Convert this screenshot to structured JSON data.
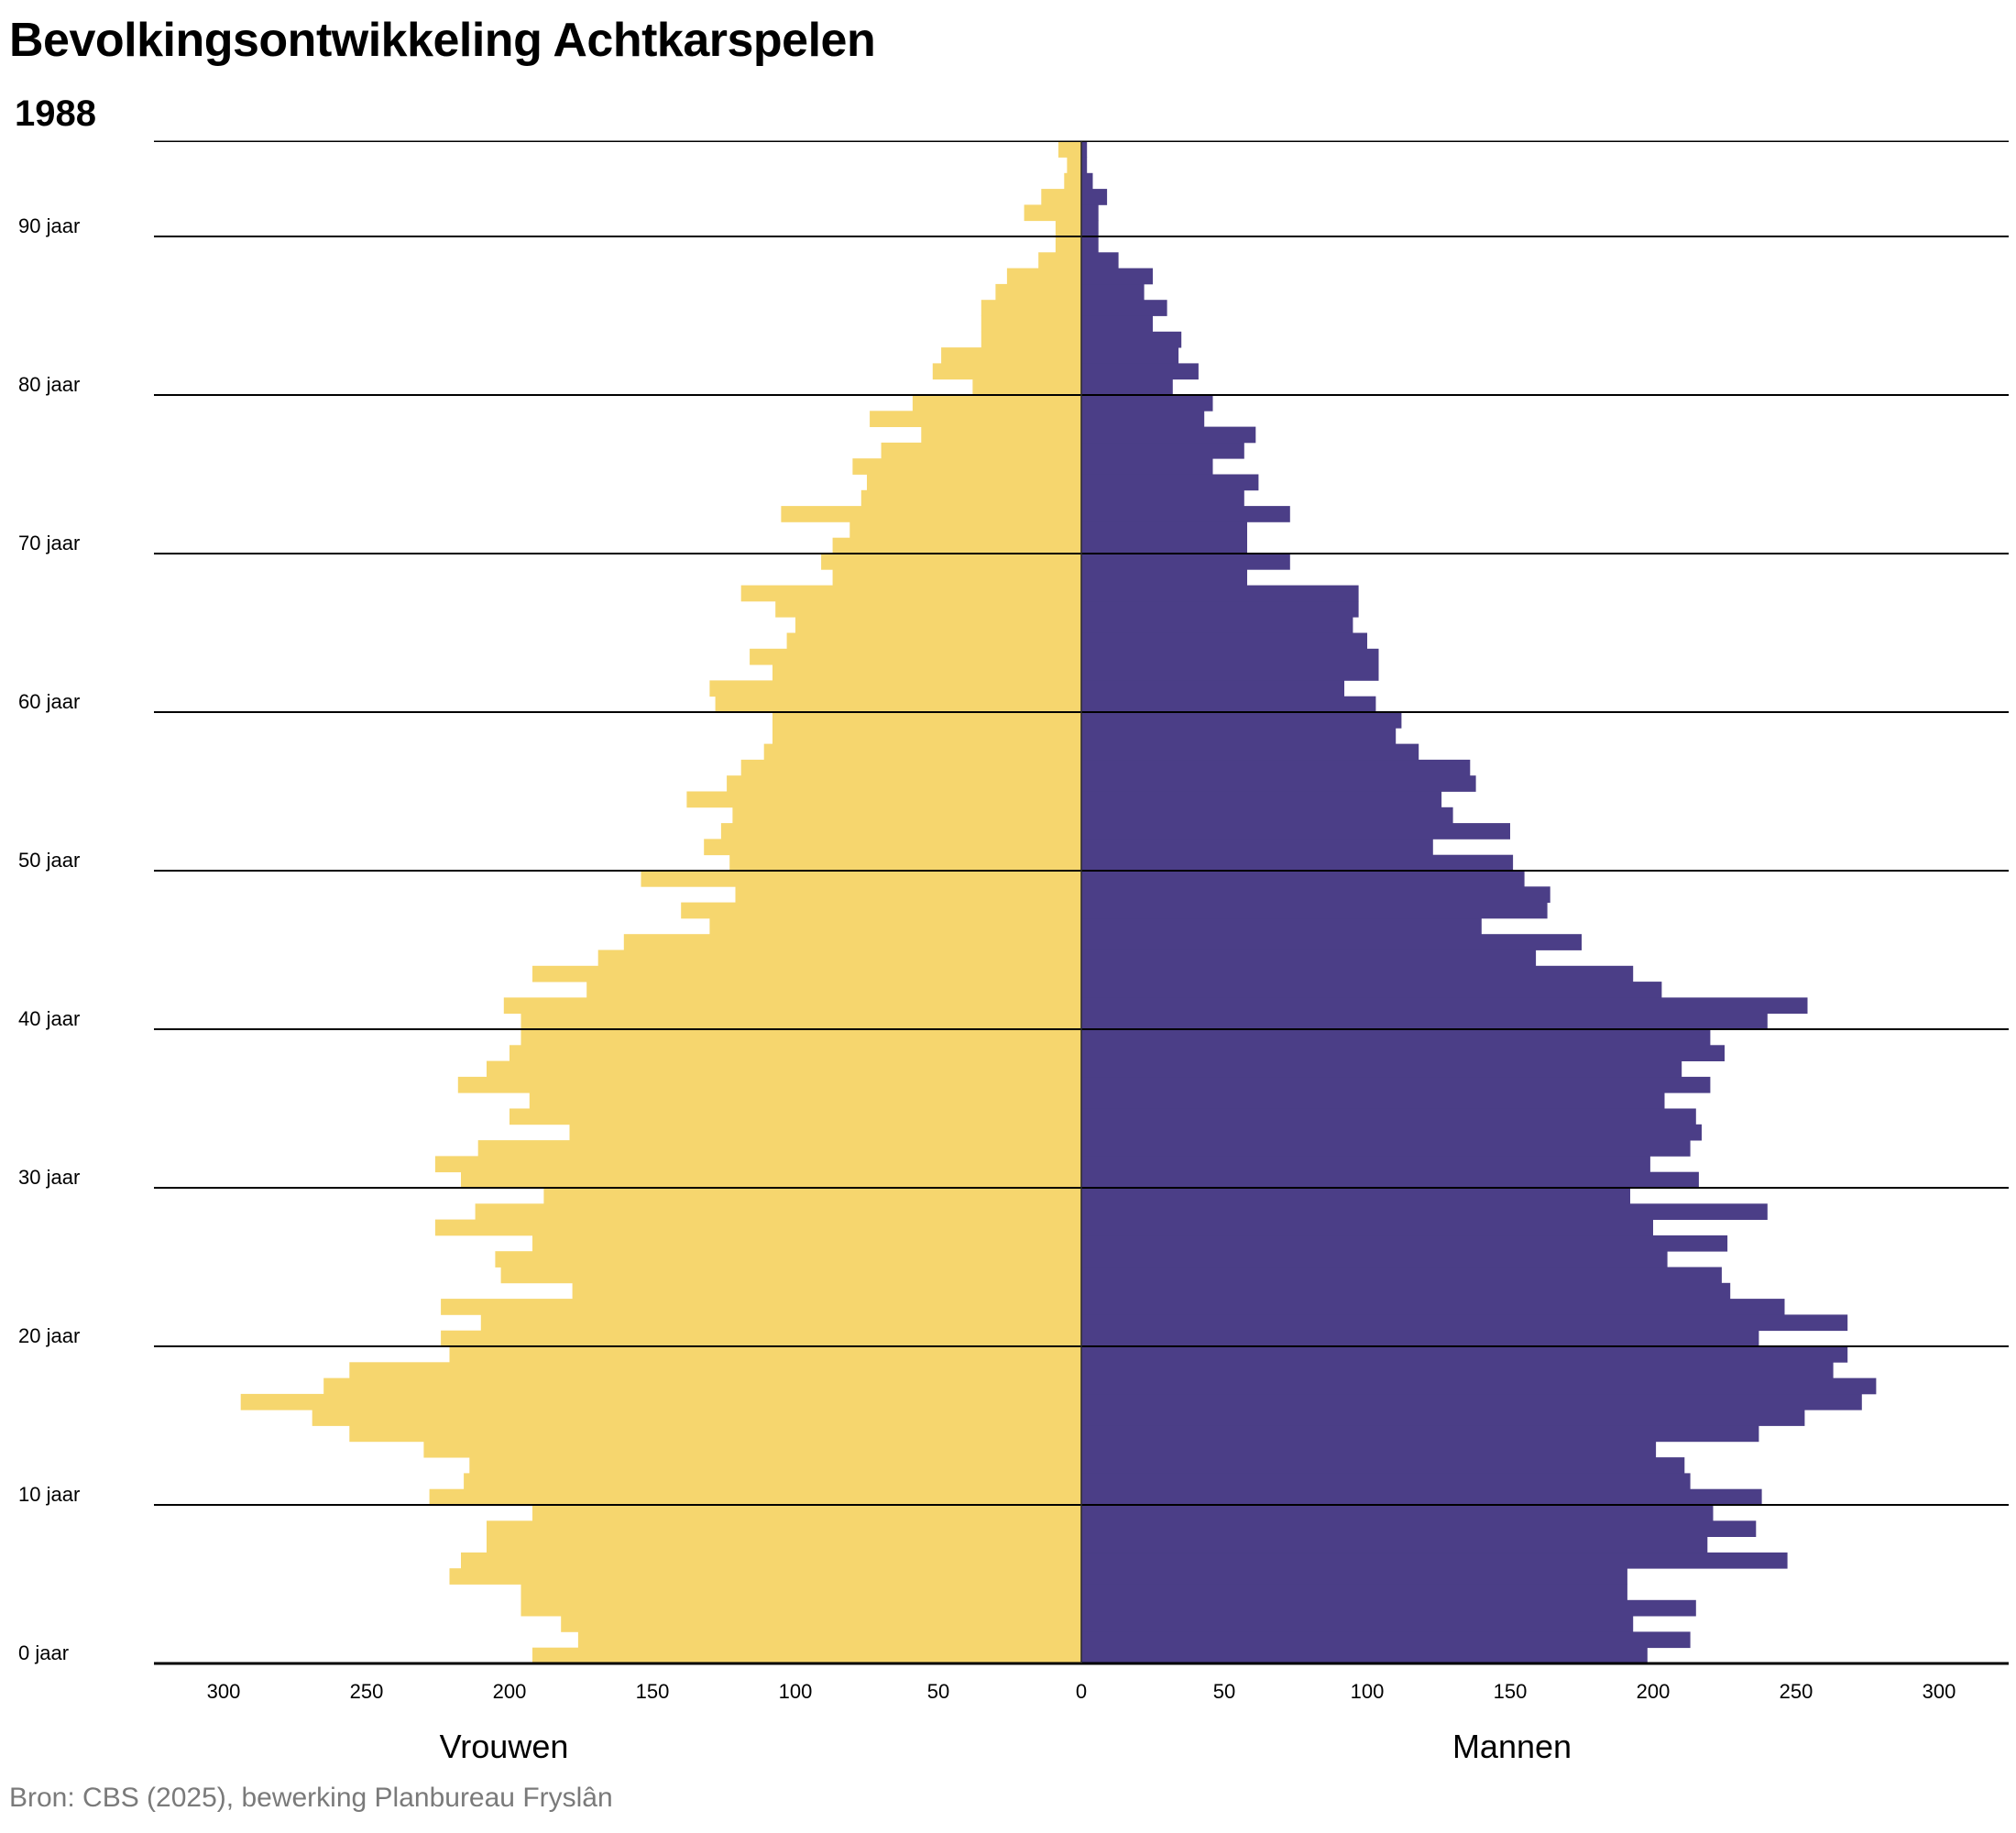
{
  "title": "Bevolkingsontwikkeling Achtkarspelen",
  "subtitle": "1988",
  "source": "Bron: CBS (2025), bewerking Planbureau Fryslân",
  "chart_data": {
    "type": "bar",
    "orientation": "horizontal-population-pyramid",
    "title": "Bevolkingsontwikkeling Achtkarspelen",
    "subtitle": "1988",
    "xlim": [
      -320,
      320
    ],
    "x_ticks": [
      300,
      250,
      200,
      150,
      100,
      50,
      0,
      50,
      100,
      150,
      200,
      250,
      300
    ],
    "x_tick_values": [
      -300,
      -250,
      -200,
      -150,
      -100,
      -50,
      0,
      50,
      100,
      150,
      200,
      250,
      300
    ],
    "y_ticks": [
      {
        "age": 0,
        "label": "0 jaar"
      },
      {
        "age": 10,
        "label": "10 jaar"
      },
      {
        "age": 20,
        "label": "20 jaar"
      },
      {
        "age": 30,
        "label": "30 jaar"
      },
      {
        "age": 40,
        "label": "40 jaar"
      },
      {
        "age": 50,
        "label": "50 jaar"
      },
      {
        "age": 60,
        "label": "60 jaar"
      },
      {
        "age": 70,
        "label": "70 jaar"
      },
      {
        "age": 80,
        "label": "80 jaar"
      },
      {
        "age": 90,
        "label": "90 jaar"
      }
    ],
    "grid": true,
    "ages_min": 0,
    "ages_max": 95,
    "series": [
      {
        "name": "Vrouwen",
        "side": "left",
        "color": "#F6D66E",
        "values": [
          192,
          176,
          182,
          196,
          196,
          221,
          217,
          208,
          208,
          192,
          228,
          216,
          214,
          230,
          256,
          269,
          294,
          265,
          256,
          221,
          224,
          210,
          224,
          178,
          203,
          205,
          192,
          226,
          212,
          188,
          217,
          226,
          211,
          179,
          200,
          193,
          218,
          208,
          200,
          196,
          196,
          202,
          173,
          192,
          169,
          160,
          130,
          140,
          121,
          154,
          123,
          132,
          126,
          122,
          138,
          124,
          119,
          111,
          108,
          108,
          128,
          130,
          108,
          116,
          103,
          100,
          107,
          119,
          87,
          91,
          87,
          81,
          105,
          77,
          75,
          80,
          70,
          56,
          74,
          59,
          38,
          52,
          49,
          35,
          35,
          35,
          30,
          26,
          15,
          9,
          9,
          20,
          14,
          6,
          5,
          8
        ]
      },
      {
        "name": "Mannen",
        "side": "right",
        "color": "#4B3E87",
        "values": [
          198,
          213,
          193,
          215,
          191,
          191,
          247,
          219,
          236,
          221,
          238,
          213,
          211,
          201,
          237,
          253,
          273,
          278,
          263,
          268,
          237,
          268,
          246,
          227,
          224,
          205,
          226,
          200,
          240,
          192,
          216,
          199,
          213,
          217,
          215,
          204,
          220,
          210,
          225,
          220,
          240,
          254,
          203,
          193,
          159,
          175,
          140,
          163,
          164,
          155,
          151,
          123,
          150,
          130,
          126,
          138,
          136,
          118,
          110,
          112,
          103,
          92,
          104,
          104,
          100,
          95,
          97,
          97,
          58,
          73,
          58,
          58,
          73,
          57,
          62,
          46,
          57,
          61,
          43,
          46,
          32,
          41,
          34,
          35,
          25,
          30,
          22,
          25,
          13,
          6,
          6,
          6,
          9,
          4,
          2,
          2
        ]
      }
    ],
    "legend": [
      {
        "label": "Vrouwen",
        "placement": "bottom-left"
      },
      {
        "label": "Mannen",
        "placement": "bottom-right"
      }
    ]
  }
}
